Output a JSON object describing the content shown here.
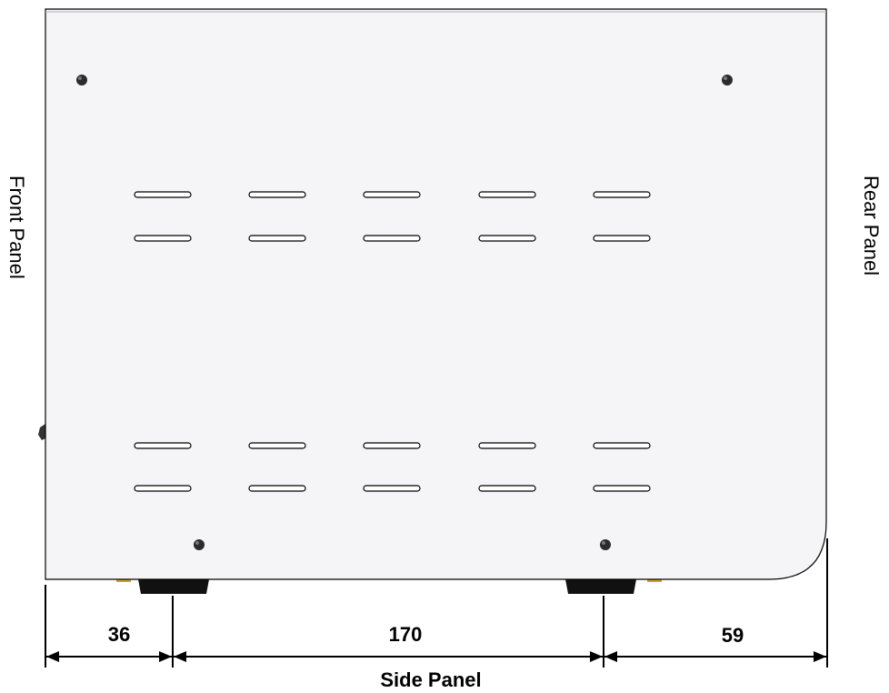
{
  "labels": {
    "front": "Front Panel",
    "rear": "Rear Panel",
    "bottom": "Side Panel"
  },
  "dimensions": [
    {
      "name": "front-offset",
      "value": "36"
    },
    {
      "name": "foot-spacing",
      "value": "170"
    },
    {
      "name": "rear-offset",
      "value": "59"
    }
  ],
  "colors": {
    "panel_fill": "#f5f5f7",
    "outline": "#000000",
    "screw": "#2b2b2b",
    "foot": "#111111",
    "foot_accent": "#c9a43a"
  }
}
